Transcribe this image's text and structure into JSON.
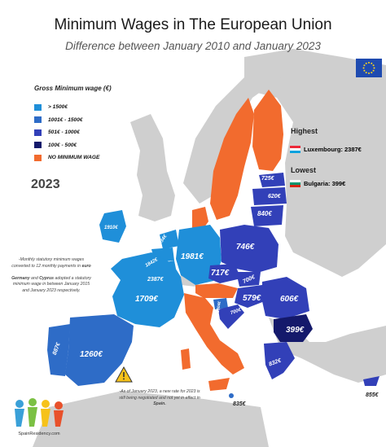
{
  "title": "Minimum Wages in The European Union",
  "subtitle": "Difference between January 2010 and January 2023",
  "legend": {
    "title": "Gross Minimum wage (€)",
    "items": [
      {
        "label": "> 1500€",
        "color": "#1f8fd9"
      },
      {
        "label": "1001€ - 1500€",
        "color": "#2e6cc7"
      },
      {
        "label": "501€ - 1000€",
        "color": "#3240b8"
      },
      {
        "label": "100€ - 500€",
        "color": "#14196b"
      },
      {
        "label": "NO MINIMUM WAGE",
        "color": "#f26b2e"
      }
    ]
  },
  "year": "2023",
  "highest": {
    "heading": "Highest",
    "text": "Luxembourg: 2387€"
  },
  "lowest": {
    "heading": "Lowest",
    "text": "Bulgaria: 399€"
  },
  "note_left": {
    "line1": "-Monthly statutory minimum wages converted to 12 monthly payments in",
    "em1": "euro",
    "p2a": "Germany",
    "p2b": "and",
    "p2c": "Cyprus",
    "p2d": "adopted a statutory minimum wage in between January 2015 and January 2023 respectively."
  },
  "note_bottom": {
    "text": "-As of January 2023, a new rate for 2023 is still being negotiated and not yet in effect in",
    "em": "Spain."
  },
  "logo_text": "SpainResidency.com",
  "country_labels": {
    "ireland": "1910€",
    "netherlands": "1934€",
    "belgium": "1842€",
    "luxembourg": "2387€",
    "germany": "1981€",
    "france": "1709€",
    "spain": "1260€",
    "portugal": "887€",
    "poland": "746€",
    "czechia": "717€",
    "slovakia": "700€",
    "hungary": "579€",
    "romania": "606€",
    "bulgaria": "399€",
    "greece": "832€",
    "croatia": "700€",
    "slovenia": "1304€",
    "estonia": "725€",
    "latvia": "620€",
    "lithuania": "840€",
    "malta": "835€",
    "cyprus": "855€"
  },
  "colors": {
    "sea": "#ffffff",
    "land_grey": "#cfcfcf",
    "band1": "#1f8fd9",
    "band2": "#2e6cc7",
    "band3": "#3240b8",
    "band4": "#14196b",
    "nomin": "#f26b2e"
  }
}
